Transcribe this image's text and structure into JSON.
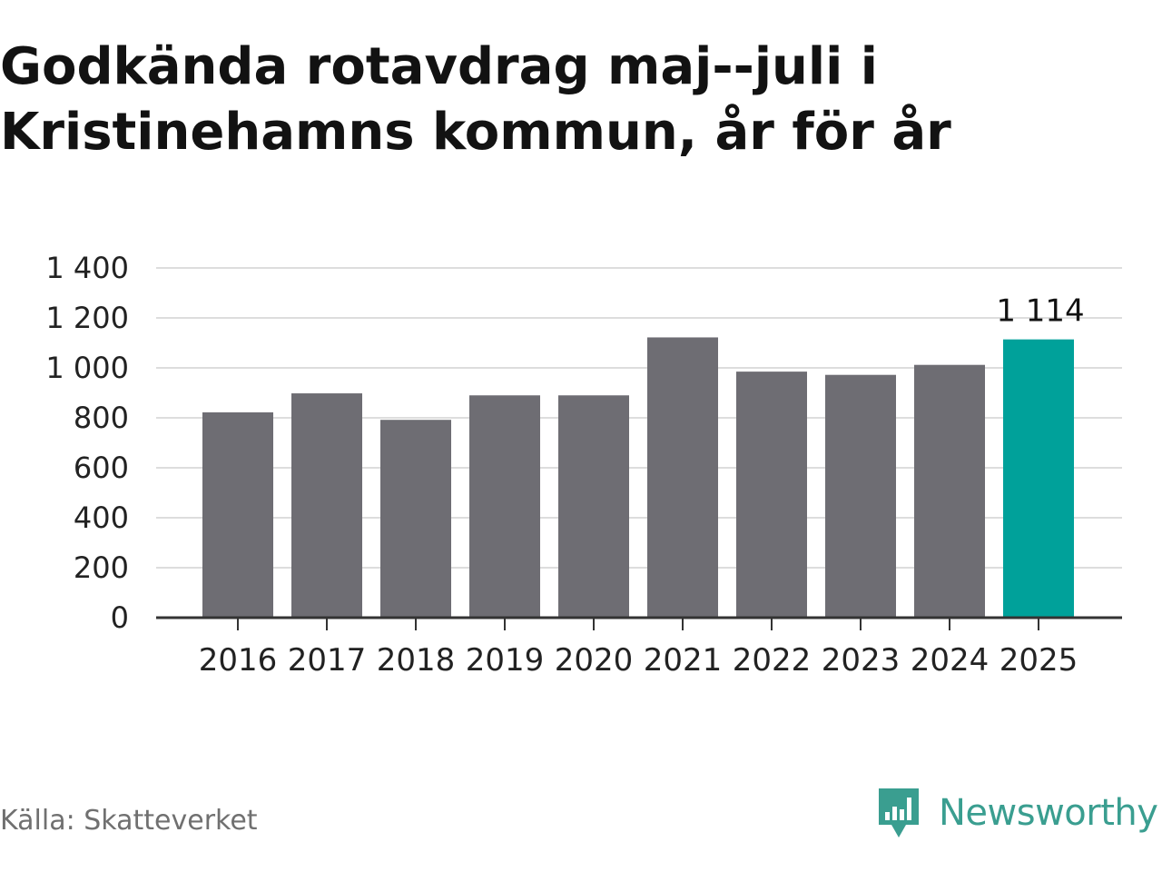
{
  "title_lines": [
    "Godkända rotavdrag maj--juli i",
    "Kristinehamns kommun, år för år"
  ],
  "source": "Källa: Skatteverket",
  "brand": {
    "name": "Newsworthy",
    "icon": "newsworthy-logo-icon"
  },
  "colors": {
    "bar": "#6e6d73",
    "highlight": "#00a19a",
    "grid": "#dddddd",
    "axis": "#333333"
  },
  "chart_data": {
    "type": "bar",
    "title": "Godkända rotavdrag maj--juli i Kristinehamns kommun, år för år",
    "xlabel": "",
    "ylabel": "",
    "categories": [
      "2016",
      "2017",
      "2018",
      "2019",
      "2020",
      "2021",
      "2022",
      "2023",
      "2024",
      "2025"
    ],
    "values": [
      822,
      898,
      792,
      890,
      890,
      1122,
      985,
      972,
      1012,
      1114
    ],
    "highlight_index": 9,
    "data_labels": {
      "2025": "1 114"
    },
    "y_ticks": [
      0,
      200,
      400,
      600,
      800,
      1000,
      1200,
      1400
    ],
    "y_tick_labels": [
      "0",
      "200",
      "400",
      "600",
      "800",
      "1 000",
      "1 200",
      "1 400"
    ],
    "ylim": [
      0,
      1400
    ],
    "grid": true,
    "legend": "none"
  }
}
